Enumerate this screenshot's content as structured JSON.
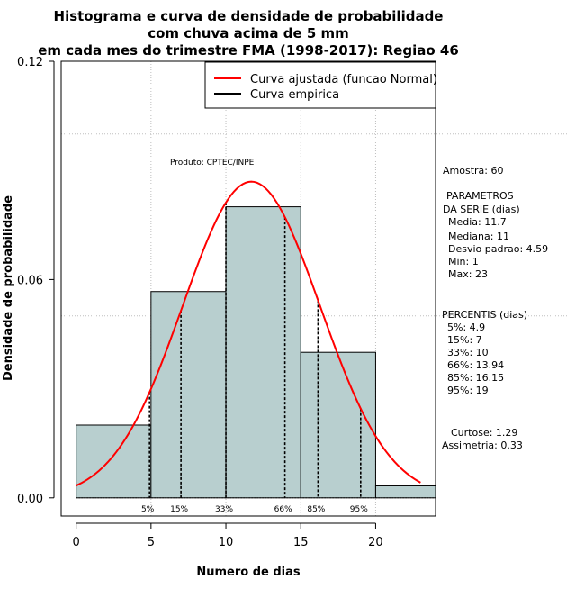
{
  "chart_data": {
    "type": "bar",
    "title": [
      "Histograma e curva de densidade de probabilidade",
      "com chuva acima de 5 mm",
      "em cada mes do trimestre FMA (1998-2017): Regiao 46"
    ],
    "xlabel": "Numero de dias",
    "ylabel": "Densidade de probabilidade",
    "xlim": [
      -1,
      24
    ],
    "ylim": [
      -0.005,
      0.12
    ],
    "x_ticks": [
      0,
      5,
      10,
      15,
      20
    ],
    "y_ticks": [
      0.0,
      0.06,
      0.12
    ],
    "y_tick_labels": [
      "0.00",
      "0.06",
      "0.12"
    ],
    "grid": true,
    "grid_x": [
      5,
      10,
      15,
      20
    ],
    "grid_y": [
      0.05,
      0.1
    ],
    "bins": [
      {
        "start": 0,
        "end": 5,
        "density": 0.02
      },
      {
        "start": 5,
        "end": 10,
        "density": 0.0567
      },
      {
        "start": 10,
        "end": 15,
        "density": 0.08
      },
      {
        "start": 15,
        "end": 20,
        "density": 0.04
      },
      {
        "start": 20,
        "end": 25,
        "density": 0.0033
      }
    ],
    "normal_curve": {
      "mean": 11.7,
      "sd": 4.59,
      "x_from": 0,
      "x_to": 23
    },
    "percentile_lines": [
      {
        "label": "5%",
        "x": 4.9
      },
      {
        "label": "15%",
        "x": 7
      },
      {
        "label": "33%",
        "x": 10
      },
      {
        "label": "66%",
        "x": 13.94
      },
      {
        "label": "85%",
        "x": 16.15
      },
      {
        "label": "95%",
        "x": 19
      }
    ],
    "legend": {
      "placement": "top-right",
      "entries": [
        {
          "label": "Curva ajustada (funcao Normal)",
          "color": "#ff0000"
        },
        {
          "label": "Curva empirica",
          "color": "#000000"
        }
      ]
    },
    "annotations": {
      "product": "Produto: CPTEC/INPE",
      "stats": [
        "Amostra: 60",
        "PARAMETROS",
        "DA SERIE (dias)",
        "Media: 11.7",
        "Mediana: 11",
        "Desvio padrao: 4.59",
        "Min: 1",
        "Max: 23",
        "PERCENTIS (dias)",
        "5%: 4.9",
        "15%: 7",
        "33%: 10",
        "66%: 13.94",
        "85%: 16.15",
        "95%: 19",
        "Curtose: 1.29",
        "Assimetria: 0.33"
      ]
    },
    "colors": {
      "bar_fill": "#b8cfcf",
      "curve": "#ff0000",
      "grid": "#bfbfbf"
    }
  }
}
